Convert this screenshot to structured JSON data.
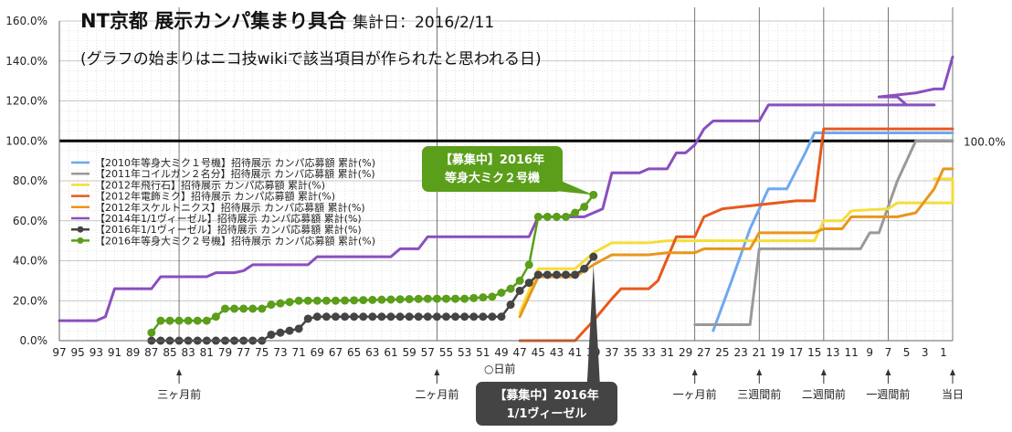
{
  "chart_data": {
    "type": "line",
    "title": "NT京都 展示カンパ集まり具合",
    "date_label": "集計日：2016/2/11",
    "subtitle": "(グラフの始まりはニコ技wikiで該当項目が作られたと思われる日)",
    "ylim": [
      0,
      160
    ],
    "y_ticks": [
      "0.0%",
      "20.0%",
      "40.0%",
      "60.0%",
      "80.0%",
      "100.0%",
      "120.0%",
      "140.0%",
      "160.0%"
    ],
    "y_tick_values": [
      0,
      20,
      40,
      60,
      80,
      100,
      120,
      140,
      160
    ],
    "xlim": [
      97,
      0
    ],
    "x_ticks": [
      "97",
      "95",
      "93",
      "91",
      "89",
      "87",
      "85",
      "83",
      "81",
      "79",
      "77",
      "75",
      "73",
      "71",
      "69",
      "67",
      "65",
      "63",
      "61",
      "59",
      "57",
      "55",
      "53",
      "51",
      "49",
      "47",
      "45",
      "43",
      "41",
      "39",
      "37",
      "35",
      "33",
      "31",
      "29",
      "27",
      "25",
      "23",
      "21",
      "19",
      "17",
      "15",
      "13",
      "11",
      "9",
      "7",
      "5",
      "3",
      "1"
    ],
    "x_tick_values": [
      97,
      95,
      93,
      91,
      89,
      87,
      85,
      83,
      81,
      79,
      77,
      75,
      73,
      71,
      69,
      67,
      65,
      63,
      61,
      59,
      57,
      55,
      53,
      51,
      49,
      47,
      45,
      43,
      41,
      39,
      37,
      35,
      33,
      31,
      29,
      27,
      25,
      23,
      21,
      19,
      17,
      15,
      13,
      11,
      9,
      7,
      5,
      3,
      1
    ],
    "x_axis_label": "○日前",
    "reference_line": {
      "value": 100,
      "label": "100.0%"
    },
    "markers": [
      {
        "x": 84,
        "label": "三ヶ月前"
      },
      {
        "x": 56,
        "label": "二ヶ月前"
      },
      {
        "x": 28,
        "label": "一ヶ月前"
      },
      {
        "x": 21,
        "label": "三週間前"
      },
      {
        "x": 14,
        "label": "二週間前"
      },
      {
        "x": 7,
        "label": "一週間前"
      },
      {
        "x": 0,
        "label": "当日"
      }
    ],
    "grid": "on",
    "legend_position": "left-center",
    "series": [
      {
        "name": "【2010年等身大ミク１号機】招待展示 カンパ応募額 累計(%)",
        "color": "#6fa8f0",
        "width": 3,
        "marker": false,
        "points": [
          [
            26,
            5
          ],
          [
            24,
            30
          ],
          [
            22,
            56
          ],
          [
            20,
            76
          ],
          [
            18,
            76
          ],
          [
            16,
            94
          ],
          [
            15,
            104
          ],
          [
            0,
            104
          ]
        ]
      },
      {
        "name": "【2011年コイルガン２名分】招待展示 カンパ応募額 累計(%)",
        "color": "#999999",
        "width": 3,
        "marker": false,
        "points": [
          [
            28,
            8
          ],
          [
            22,
            8
          ],
          [
            21,
            46
          ],
          [
            10,
            46
          ],
          [
            9,
            54
          ],
          [
            8,
            54
          ],
          [
            6,
            80
          ],
          [
            4,
            100
          ],
          [
            0,
            100
          ]
        ]
      },
      {
        "name": "【2012年飛行石】招待展示 カンパ応募額 累計(%)",
        "color": "#f5dd3a",
        "width": 3,
        "marker": false,
        "points": [
          [
            47,
            14
          ],
          [
            45,
            36
          ],
          [
            41,
            36
          ],
          [
            39,
            44
          ],
          [
            37,
            49
          ],
          [
            33,
            49
          ],
          [
            31,
            50
          ],
          [
            28,
            50
          ],
          [
            26,
            50
          ],
          [
            22,
            50
          ],
          [
            21,
            50
          ],
          [
            15,
            50
          ],
          [
            14,
            60
          ],
          [
            12,
            60
          ],
          [
            11,
            65
          ],
          [
            7,
            66
          ],
          [
            6,
            69
          ],
          [
            0,
            69
          ],
          [
            0,
            81
          ],
          [
            1,
            81
          ],
          [
            2,
            81
          ]
        ]
      },
      {
        "name": "【2012年電飾ミク】招待展示 カンパ応募額 累計(%)",
        "color": "#e8591c",
        "width": 3,
        "marker": false,
        "points": [
          [
            47,
            0
          ],
          [
            41,
            0
          ],
          [
            39,
            10
          ],
          [
            37,
            21
          ],
          [
            36,
            26
          ],
          [
            33,
            26
          ],
          [
            32,
            30
          ],
          [
            30,
            52
          ],
          [
            28,
            52
          ],
          [
            27,
            62
          ],
          [
            25,
            66
          ],
          [
            21,
            68
          ],
          [
            17,
            70
          ],
          [
            15,
            70
          ],
          [
            14,
            106
          ],
          [
            0,
            106
          ]
        ]
      },
      {
        "name": "【2012年スケルトニクス】招待展示 カンパ応募額 累計(%)",
        "color": "#e8961c",
        "width": 3,
        "marker": false,
        "points": [
          [
            47,
            12
          ],
          [
            45,
            32
          ],
          [
            41,
            32
          ],
          [
            39,
            38
          ],
          [
            37,
            43
          ],
          [
            33,
            43
          ],
          [
            31,
            44
          ],
          [
            28,
            44
          ],
          [
            27,
            46
          ],
          [
            22,
            46
          ],
          [
            21,
            54
          ],
          [
            15,
            54
          ],
          [
            14,
            56
          ],
          [
            12,
            56
          ],
          [
            11,
            62
          ],
          [
            6,
            62
          ],
          [
            4,
            64
          ],
          [
            2,
            76
          ],
          [
            1,
            86
          ],
          [
            0,
            86
          ]
        ]
      },
      {
        "name": "【2014年1/1ヴィーゼル】招待展示 カンパ応募額 累計(%)",
        "color": "#8a4fbe",
        "width": 3,
        "marker": false,
        "points": [
          [
            97,
            10
          ],
          [
            93,
            10
          ],
          [
            92,
            12
          ],
          [
            91,
            26
          ],
          [
            87,
            26
          ],
          [
            86,
            32
          ],
          [
            81,
            32
          ],
          [
            80,
            34
          ],
          [
            78,
            34
          ],
          [
            77,
            35
          ],
          [
            76,
            38
          ],
          [
            70,
            38
          ],
          [
            69,
            42
          ],
          [
            61,
            42
          ],
          [
            60,
            46
          ],
          [
            58,
            46
          ],
          [
            57,
            52
          ],
          [
            46,
            52
          ],
          [
            45,
            62
          ],
          [
            40,
            62
          ],
          [
            38,
            66
          ],
          [
            37,
            84
          ],
          [
            34,
            84
          ],
          [
            33,
            86
          ],
          [
            31,
            86
          ],
          [
            30,
            94
          ],
          [
            29,
            94
          ],
          [
            28,
            98
          ],
          [
            27,
            106
          ],
          [
            26,
            110
          ],
          [
            21,
            110
          ],
          [
            20,
            118
          ],
          [
            2,
            118
          ],
          [
            3,
            118
          ],
          [
            5,
            118
          ],
          [
            6,
            122
          ],
          [
            8,
            122
          ],
          [
            4,
            124
          ],
          [
            2,
            126
          ],
          [
            1,
            126
          ],
          [
            0,
            142
          ]
        ]
      },
      {
        "name": "【2016年1/1ヴィーゼル】招待展示 カンパ応募額 累計(%)",
        "color": "#444444",
        "width": 2.5,
        "marker": true,
        "points": [
          [
            87,
            0
          ],
          [
            75,
            0
          ],
          [
            74,
            3
          ],
          [
            71,
            6
          ],
          [
            70,
            11
          ],
          [
            69,
            12
          ],
          [
            53,
            12
          ],
          [
            49,
            12
          ],
          [
            48,
            18
          ],
          [
            47,
            25
          ],
          [
            46,
            29
          ],
          [
            45,
            33
          ],
          [
            41,
            33
          ],
          [
            40,
            36
          ],
          [
            39,
            42
          ]
        ]
      },
      {
        "name": "【2016年等身大ミク２号機】招待展示 カンパ応募額 累計(%)",
        "color": "#5a9e1a",
        "width": 2.5,
        "marker": true,
        "points": [
          [
            87,
            4
          ],
          [
            86,
            10
          ],
          [
            81,
            10
          ],
          [
            80,
            12
          ],
          [
            79,
            16
          ],
          [
            75,
            16
          ],
          [
            74,
            18
          ],
          [
            71,
            20
          ],
          [
            67,
            20
          ],
          [
            57,
            21
          ],
          [
            53,
            21
          ],
          [
            50,
            22
          ],
          [
            48,
            26
          ],
          [
            47,
            30
          ],
          [
            46,
            38
          ],
          [
            45,
            62
          ],
          [
            42,
            62
          ],
          [
            41,
            64
          ],
          [
            40,
            67
          ],
          [
            39,
            73
          ]
        ]
      }
    ],
    "callouts": [
      {
        "text_lines": [
          "【募集中】2016年",
          "等身大ミク２号機"
        ],
        "color": "#5a9e1a",
        "target_x": 39,
        "target_y": 73
      },
      {
        "text_lines": [
          "【募集中】2016年",
          "1/1ヴィーゼル"
        ],
        "color": "#444444",
        "target_x": 39,
        "target_y": 40
      }
    ]
  }
}
